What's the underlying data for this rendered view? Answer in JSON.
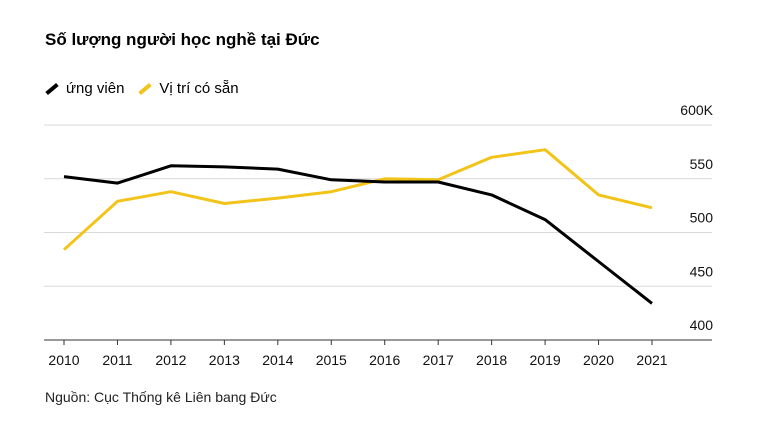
{
  "title": "Số lượng người học nghề tại Đức",
  "source": "Nguồn: Cục Thống kê Liên bang Đức",
  "chart_data": {
    "type": "line",
    "title": "Số lượng người học nghề tại Đức",
    "xlabel": "",
    "ylabel": "",
    "x": [
      "2010",
      "2011",
      "2012",
      "2013",
      "2014",
      "2015",
      "2016",
      "2017",
      "2018",
      "2019",
      "2020",
      "2021"
    ],
    "yticks": [
      "400",
      "450",
      "500",
      "550",
      "600K"
    ],
    "ylim": [
      400,
      600
    ],
    "grid": true,
    "legend": "top-left",
    "series": [
      {
        "name": "ứng viên",
        "color": "#000000",
        "values": [
          552,
          546,
          562,
          561,
          559,
          549,
          547,
          547,
          535,
          512,
          473,
          434
        ]
      },
      {
        "name": "Vị trí có sẵn",
        "color": "#f2c318",
        "values": [
          484,
          529,
          538,
          527,
          532,
          538,
          550,
          549,
          570,
          577,
          535,
          523
        ]
      }
    ]
  }
}
